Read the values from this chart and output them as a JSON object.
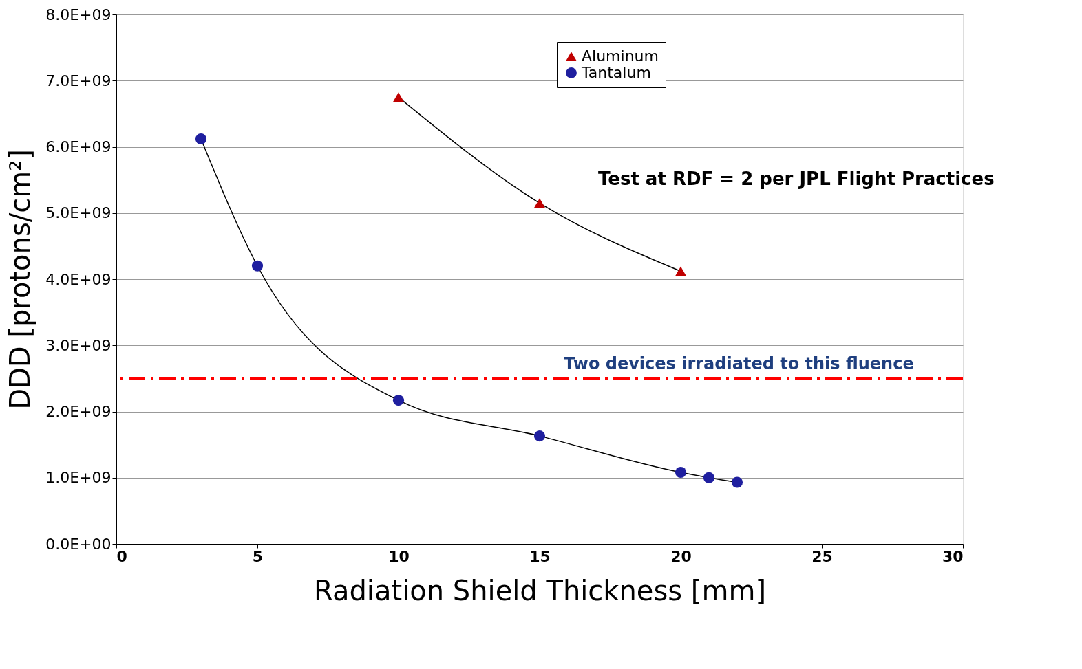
{
  "chart_data": {
    "type": "line",
    "xlabel": "Radiation Shield Thickness [mm]",
    "ylabel": "DDD [protons/cm²]",
    "series": [
      {
        "name": "Aluminum",
        "color": "#c00000",
        "marker": "triangle",
        "x": [
          10,
          15,
          20
        ],
        "values": [
          6750000000,
          5150000000,
          4120000000
        ]
      },
      {
        "name": "Tantalum",
        "color": "#1f1f9f",
        "marker": "circle",
        "x": [
          3,
          5,
          10,
          15,
          20,
          21,
          22
        ],
        "values": [
          6120000000,
          4200000000,
          2170000000,
          1630000000,
          1080000000,
          1000000000,
          930000000
        ]
      }
    ],
    "xlim": [
      0,
      30
    ],
    "xticks": [
      0,
      5,
      10,
      15,
      20,
      25,
      30
    ],
    "ylim": [
      0,
      8000000000
    ],
    "yticks": [
      {
        "value": 0,
        "label": "0.0E+00"
      },
      {
        "value": 1000000000,
        "label": "1.0E+09"
      },
      {
        "value": 2000000000,
        "label": "2.0E+09"
      },
      {
        "value": 3000000000,
        "label": "3.0E+09"
      },
      {
        "value": 4000000000,
        "label": "4.0E+09"
      },
      {
        "value": 5000000000,
        "label": "5.0E+09"
      },
      {
        "value": 6000000000,
        "label": "6.0E+09"
      },
      {
        "value": 7000000000,
        "label": "7.0E+09"
      },
      {
        "value": 8000000000,
        "label": "8.0E+09"
      }
    ],
    "grid": "y",
    "legend": "top",
    "ref_lines": [
      {
        "axis": "y",
        "value": 2500000000,
        "label": "Two devices irradiated to this fluence",
        "color": "#ff0000",
        "line_style": "dashdot"
      }
    ],
    "annotations": [
      "Test at RDF = 2 per JPL Flight Practices"
    ]
  }
}
